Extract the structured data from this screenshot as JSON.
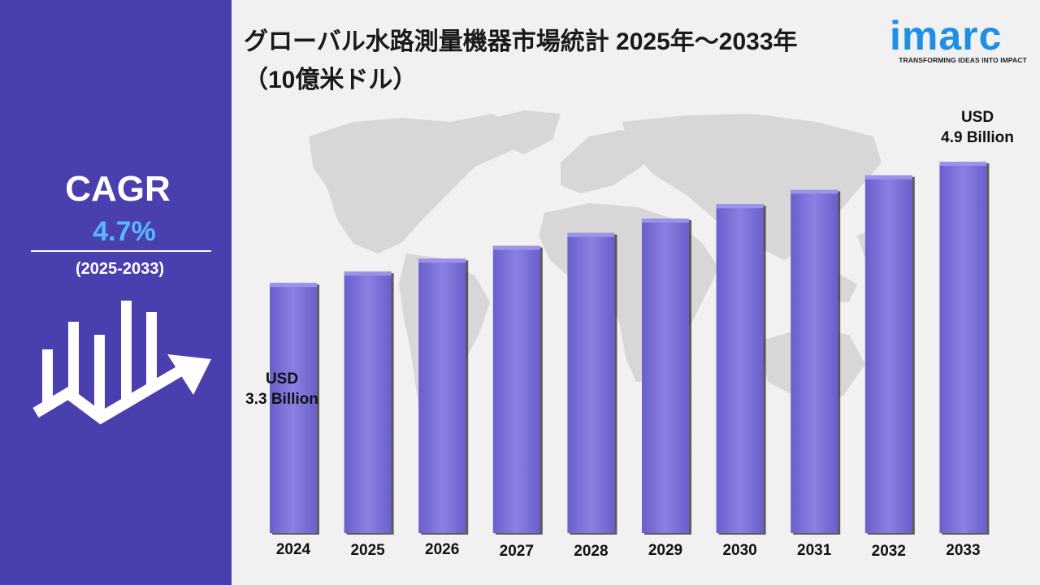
{
  "title": "グローバル水路測量機器市場統計 2025年〜2033年（10億米ドル）",
  "sidebar": {
    "cagr_label": "CAGR",
    "cagr_value": "4.7%",
    "period": "(2025-2033)"
  },
  "logo": {
    "word": "imarc",
    "tagline": "TRANSFORMING IDEAS INTO IMPACT"
  },
  "colors": {
    "sidebar": "#4a3fae",
    "bar_fill": "#7f74dc",
    "bar_cap": "#9b92eb",
    "cagr_value": "#58b9ff",
    "logo": "#1f8fe6",
    "map": "#d7d7d7",
    "background": "#f1f1f1"
  },
  "annotations": {
    "start_line1": "USD",
    "start_line2": "3.3 Billion",
    "end_line1": "USD",
    "end_line2": "4.9 Billion"
  },
  "chart_data": {
    "type": "bar",
    "categories": [
      "2024",
      "2025",
      "2026",
      "2027",
      "2028",
      "2029",
      "2030",
      "2031",
      "2032",
      "2033"
    ],
    "values": [
      3.3,
      3.45,
      3.62,
      3.79,
      3.96,
      4.15,
      4.34,
      4.53,
      4.72,
      4.9
    ],
    "ylim": [
      0,
      5.5
    ],
    "grid": false,
    "legend": "none"
  }
}
